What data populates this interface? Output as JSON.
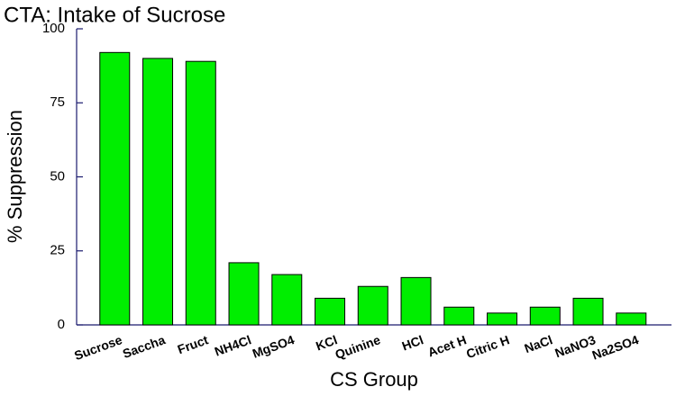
{
  "chart_data": {
    "type": "bar",
    "title": "CTA: Intake of Sucrose",
    "x_label": "CS Group",
    "y_label": "% Suppression",
    "categories": [
      "Sucrose",
      "Saccha",
      "Fruct",
      "NH4Cl",
      "MgSO4",
      "KCl",
      "Quinine",
      "HCl",
      "Acet H",
      "Citric H",
      "NaCl",
      "NaNO3",
      "Na2SO4"
    ],
    "values": [
      92,
      90,
      89,
      21,
      17,
      9,
      13,
      16,
      6,
      4,
      6,
      9,
      4
    ],
    "color": "#00ee00",
    "ylim": [
      0,
      100
    ],
    "yticks": [
      0,
      25,
      50,
      75,
      100
    ],
    "grid": false
  }
}
